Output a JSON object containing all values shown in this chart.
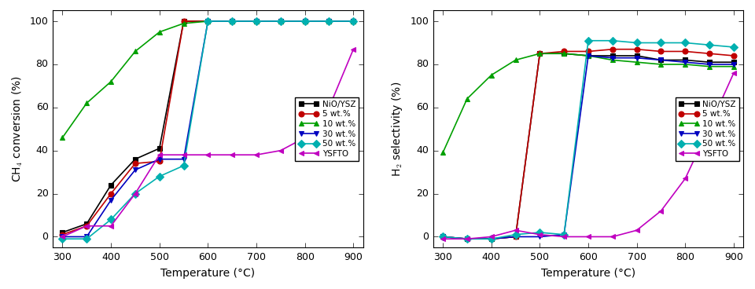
{
  "temp": [
    300,
    350,
    400,
    450,
    500,
    550,
    600,
    650,
    700,
    750,
    800,
    850,
    900
  ],
  "conv_NiO_YSZ": [
    2,
    6,
    24,
    36,
    41,
    100,
    100,
    100,
    100,
    100,
    100,
    100,
    100
  ],
  "conv_5wt": [
    1,
    5,
    20,
    34,
    35,
    100,
    100,
    100,
    100,
    100,
    100,
    100,
    100
  ],
  "conv_10wt": [
    46,
    62,
    72,
    86,
    95,
    99,
    100,
    100,
    100,
    100,
    100,
    100,
    100
  ],
  "conv_30wt": [
    0,
    0,
    17,
    31,
    36,
    36,
    100,
    100,
    100,
    100,
    100,
    100,
    100
  ],
  "conv_50wt": [
    -1,
    -1,
    8,
    20,
    28,
    33,
    100,
    100,
    100,
    100,
    100,
    100,
    100
  ],
  "conv_YSFTO": [
    0,
    5,
    5,
    20,
    38,
    38,
    38,
    38,
    38,
    40,
    46,
    60,
    87
  ],
  "sel_NiO_YSZ": [
    0,
    -1,
    -1,
    0,
    85,
    85,
    84,
    84,
    84,
    82,
    82,
    81,
    81
  ],
  "sel_5wt": [
    0,
    -1,
    -1,
    0,
    85,
    86,
    86,
    87,
    87,
    86,
    86,
    85,
    84
  ],
  "sel_10wt": [
    39,
    64,
    75,
    82,
    85,
    85,
    84,
    82,
    81,
    80,
    80,
    79,
    79
  ],
  "sel_30wt": [
    0,
    -1,
    -1,
    0,
    0,
    1,
    84,
    83,
    83,
    82,
    81,
    80,
    80
  ],
  "sel_50wt": [
    0,
    -1,
    -1,
    1,
    2,
    1,
    91,
    91,
    90,
    90,
    90,
    89,
    88
  ],
  "sel_YSFTO": [
    -1,
    -1,
    0,
    3,
    1,
    0,
    0,
    0,
    3,
    12,
    27,
    51,
    76
  ],
  "colors": {
    "NiO_YSZ": "#000000",
    "5wt": "#c00000",
    "10wt": "#00a000",
    "30wt": "#0000c0",
    "50wt": "#00b0b0",
    "YSFTO": "#c000c0"
  },
  "markers": {
    "NiO_YSZ": "s",
    "5wt": "o",
    "10wt": "^",
    "30wt": "v",
    "50wt": "D",
    "YSFTO": "<"
  },
  "legend_labels": [
    "NiO/YSZ",
    "5 wt.%",
    "10 wt.%",
    "30 wt.%",
    "50 wt.%",
    "YSFTO"
  ],
  "xlabel": "Temperature (°C)",
  "ylabel_left": "CH$_4$ conversion (%)",
  "ylabel_right": "H$_2$ selectivity (%)",
  "xlim": [
    280,
    920
  ],
  "ylim_left": [
    -5,
    105
  ],
  "ylim_right": [
    -5,
    105
  ],
  "xticks": [
    300,
    400,
    500,
    600,
    700,
    800,
    900
  ],
  "yticks": [
    0,
    20,
    40,
    60,
    80,
    100
  ]
}
